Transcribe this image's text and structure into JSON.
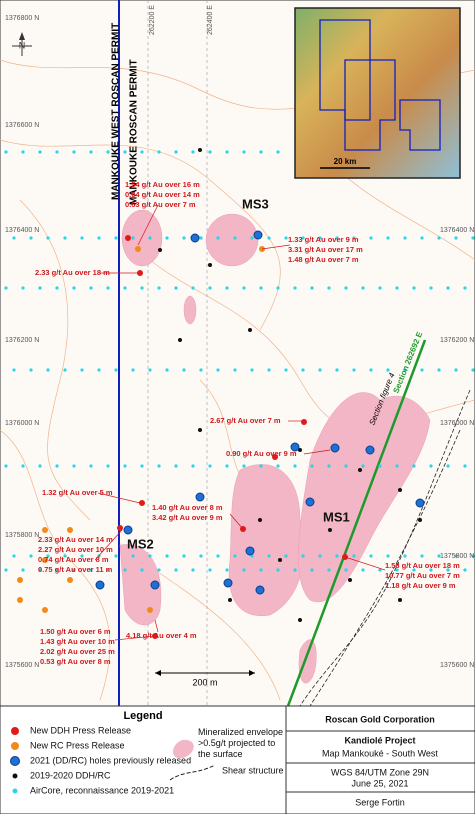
{
  "map": {
    "grid_labels": [
      "1376800 N",
      "1376600 N",
      "1376400 N",
      "1376400 N",
      "1376200 N",
      "1376200 N",
      "1376000 N",
      "1376000 N",
      "1375800 N",
      "1375800 N",
      "1375600 N",
      "1375600 N"
    ],
    "easting_labels": [
      "262200 E",
      "262400 E"
    ],
    "north": "N",
    "permits": [
      "MANKOUKE WEST ROSCAN PERMIT",
      "MANKOUKE ROSCAN PERMIT"
    ],
    "zones": [
      "MS3",
      "MS2",
      "MS1"
    ],
    "sections": [
      "Section figure 4",
      "Section 262692 E"
    ],
    "inset_scale": "20 km",
    "scale_bar": "200 m",
    "annotations": [
      [
        "1.54 g/t Au over 16 m",
        "0.64 g/t Au over 14 m",
        "0.63 g/t Au over 7 m"
      ],
      [
        "1.33 g/t Au over 9 m",
        "3.31 g/t Au over 17 m",
        "1.48 g/t Au over 7 m"
      ],
      [
        "2.33 g/t Au over 18 m"
      ],
      [
        "2.67 g/t Au over 7 m"
      ],
      [
        "0.90 g/t Au over 9 m"
      ],
      [
        "1.32 g/t Au over 5 m"
      ],
      [
        "1.40 g/t Au over 8 m",
        "3.42 g/t Au over 9 m"
      ],
      [
        "2.33 g/t Au over 14 m",
        "2.27 g/t Au over 10 m",
        "0.74 g/t Au over 8 m",
        "0.75 g/t Au over 11 m"
      ],
      [
        "1.58 g/t Au over 18 m",
        "10.77 g/t Au over 7 m",
        "1.18 g/t Au over 9 m"
      ],
      [
        "4.18 g/t Au over 4 m"
      ],
      [
        "1.50 g/t Au over 6 m",
        "1.43 g/t Au over 10 m",
        "2.02 g/t Au over 25 m",
        "0.53 g/t Au over 8 m"
      ]
    ]
  },
  "legend": {
    "title": "Legend",
    "items": [
      "New DDH Press Release",
      "New RC Press Release",
      "2021 (DD/RC) holes previously released",
      "2019-2020 DDH/RC",
      "AirCore, reconnaissance 2019-2021"
    ],
    "envelope": "Mineralized envelope >0.5g/t projected to the surface",
    "shear": "Shear structure"
  },
  "title_block": {
    "company": "Roscan Gold Corporation",
    "project": "Kandiolé Project",
    "map": "Map Mankouké - South West",
    "datum": "WGS 84/UTM Zone 29N",
    "date": "June 25, 2021",
    "author": "Serge Fortin"
  }
}
